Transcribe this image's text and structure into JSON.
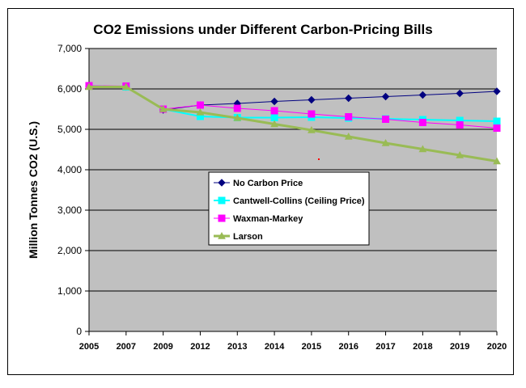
{
  "chart_data": {
    "type": "line",
    "title": "CO2 Emissions under Different Carbon-Pricing Bills",
    "xlabel": "",
    "ylabel": "Million Tonnes CO2 (U.S.)",
    "x": [
      "2005",
      "2007",
      "2009",
      "2012",
      "2013",
      "2014",
      "2015",
      "2016",
      "2017",
      "2018",
      "2019",
      "2020"
    ],
    "yticks": [
      "0",
      "1,000",
      "2,000",
      "3,000",
      "4,000",
      "5,000",
      "6,000",
      "7,000"
    ],
    "ylim": [
      0,
      7000
    ],
    "grid": "horizontal",
    "plot_background": "#c0c0c0",
    "legend_position": "inside-center-left",
    "series": [
      {
        "name": "No Carbon Price",
        "color": "#000080",
        "marker": "diamond",
        "line_width": 1,
        "values": [
          6070,
          6050,
          5480,
          5600,
          5640,
          5690,
          5730,
          5770,
          5810,
          5850,
          5890,
          5940
        ]
      },
      {
        "name": "Cantwell-Collins (Ceiling Price)",
        "color": "#00ffff",
        "marker": "square",
        "line_width": 2,
        "values": [
          6070,
          6050,
          5500,
          5320,
          5290,
          5290,
          5300,
          5280,
          5260,
          5240,
          5220,
          5200
        ]
      },
      {
        "name": "Waxman-Markey",
        "color": "#ff00ff",
        "marker": "square",
        "line_width": 1,
        "values": [
          6080,
          6070,
          5500,
          5600,
          5520,
          5460,
          5380,
          5310,
          5250,
          5170,
          5110,
          5030
        ]
      },
      {
        "name": "Larson",
        "color": "#99bb55",
        "marker": "triangle",
        "line_width": 3,
        "values": [
          6050,
          6050,
          5500,
          5420,
          5280,
          5130,
          4980,
          4820,
          4660,
          4510,
          4360,
          4210
        ]
      }
    ]
  }
}
